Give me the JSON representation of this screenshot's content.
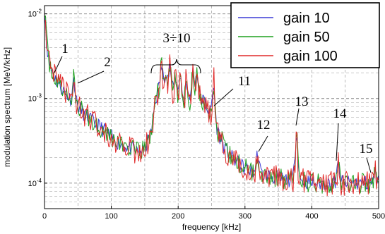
{
  "chart_data": {
    "type": "line",
    "xlabel": "frequency [kHz]",
    "ylabel": "modulation spectrum [MeV/kHz]",
    "xlim": [
      0,
      500
    ],
    "ylim": [
      5e-05,
      0.0125
    ],
    "yscale": "log",
    "grid": true,
    "legend_position": "top-right",
    "x_ticks": [
      "0",
      "100",
      "200",
      "300",
      "400",
      "500"
    ],
    "y_ticks": [
      {
        "value": 0.01,
        "base": "10",
        "exp": "-2"
      },
      {
        "value": 0.001,
        "base": "10",
        "exp": "-3"
      },
      {
        "value": 0.0001,
        "base": "10",
        "exp": "-4"
      }
    ],
    "series": [
      {
        "name": "gain 10",
        "color": "#3b3bd6"
      },
      {
        "name": "gain 50",
        "color": "#1fa01f"
      },
      {
        "name": "gain 100",
        "color": "#e02828"
      }
    ],
    "baseline": [
      [
        0,
        0.012
      ],
      [
        3,
        0.005
      ],
      [
        6,
        0.0028
      ],
      [
        10,
        0.0022
      ],
      [
        15,
        0.0018
      ],
      [
        20,
        0.0015
      ],
      [
        30,
        0.0012
      ],
      [
        40,
        0.00095
      ],
      [
        50,
        0.0008
      ],
      [
        60,
        0.00065
      ],
      [
        70,
        0.00055
      ],
      [
        80,
        0.00048
      ],
      [
        90,
        0.00042
      ],
      [
        100,
        0.00035
      ],
      [
        110,
        0.0003
      ],
      [
        120,
        0.00028
      ],
      [
        130,
        0.00025
      ],
      [
        140,
        0.00023
      ],
      [
        150,
        0.00025
      ],
      [
        160,
        0.0004
      ],
      [
        165,
        0.0009
      ],
      [
        170,
        0.0012
      ],
      [
        180,
        0.0013
      ],
      [
        190,
        0.0011
      ],
      [
        200,
        0.0009
      ],
      [
        210,
        0.0008
      ],
      [
        220,
        0.0009
      ],
      [
        230,
        0.0011
      ],
      [
        240,
        0.0009
      ],
      [
        250,
        0.0006
      ],
      [
        260,
        0.0004
      ],
      [
        270,
        0.00025
      ],
      [
        280,
        0.0002
      ],
      [
        290,
        0.00017
      ],
      [
        300,
        0.00015
      ],
      [
        320,
        0.00013
      ],
      [
        340,
        0.00012
      ],
      [
        360,
        0.00011
      ],
      [
        380,
        0.00011
      ],
      [
        400,
        0.0001
      ],
      [
        420,
        0.0001
      ],
      [
        440,
        0.0001
      ],
      [
        460,
        0.0001
      ],
      [
        480,
        0.0001
      ],
      [
        500,
        0.0001
      ]
    ],
    "peaks": [
      {
        "label": "1",
        "x": 11,
        "y": 0.0022
      },
      {
        "label": "2",
        "x": 44,
        "y": 0.002
      },
      {
        "label": "3÷10",
        "x": [
          175,
          182,
          188,
          196,
          203,
          212,
          222,
          228
        ],
        "y": [
          0.0029,
          0.0026,
          0.0028,
          0.0022,
          0.0025,
          0.002,
          0.0027,
          0.0024
        ]
      },
      {
        "label": "11",
        "x": 253,
        "y": 0.0019
      },
      {
        "label": "12",
        "x": 319,
        "y": 0.00026
      },
      {
        "label": "13",
        "x": 377,
        "y": 0.00062
      },
      {
        "label": "14",
        "x": 440,
        "y": 0.0002
      },
      {
        "label": "15",
        "x": 495,
        "y": 0.00014
      }
    ],
    "annotations": [
      {
        "text": "1"
      },
      {
        "text": "2"
      },
      {
        "text": "3÷10"
      },
      {
        "text": "11"
      },
      {
        "text": "12"
      },
      {
        "text": "13"
      },
      {
        "text": "14"
      },
      {
        "text": "15"
      }
    ]
  }
}
